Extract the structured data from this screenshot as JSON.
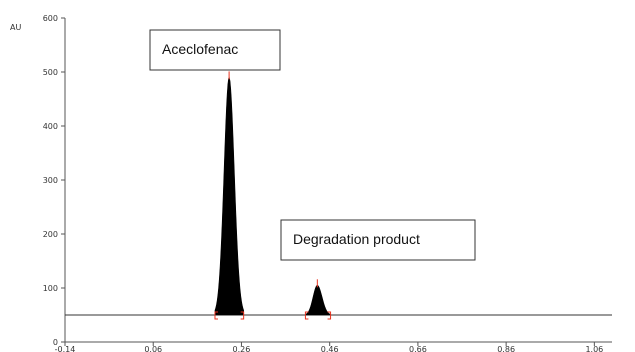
{
  "chart_data": {
    "type": "line",
    "ylabel": "AU",
    "xlim": [
      -0.14,
      1.1
    ],
    "ylim": [
      0,
      600
    ],
    "x_ticks": [
      "-0.14",
      "0.06",
      "0.26",
      "0.46",
      "0.66",
      "0.86",
      "1.06"
    ],
    "y_ticks": [
      "0",
      "100",
      "200",
      "300",
      "400",
      "500",
      "600"
    ],
    "grid": false,
    "baseline": 50,
    "peaks": [
      {
        "name": "Aceclofenac",
        "rf": 0.232,
        "height": 490,
        "start": 0.2,
        "end": 0.265
      },
      {
        "name": "Degradation product",
        "rf": 0.432,
        "height": 105,
        "start": 0.405,
        "end": 0.462
      }
    ],
    "annotations": [
      "Aceclofenac",
      "Degradation product"
    ],
    "colors": {
      "fill": "#000000",
      "marker": "#e8321e",
      "axis": "#555555"
    }
  }
}
